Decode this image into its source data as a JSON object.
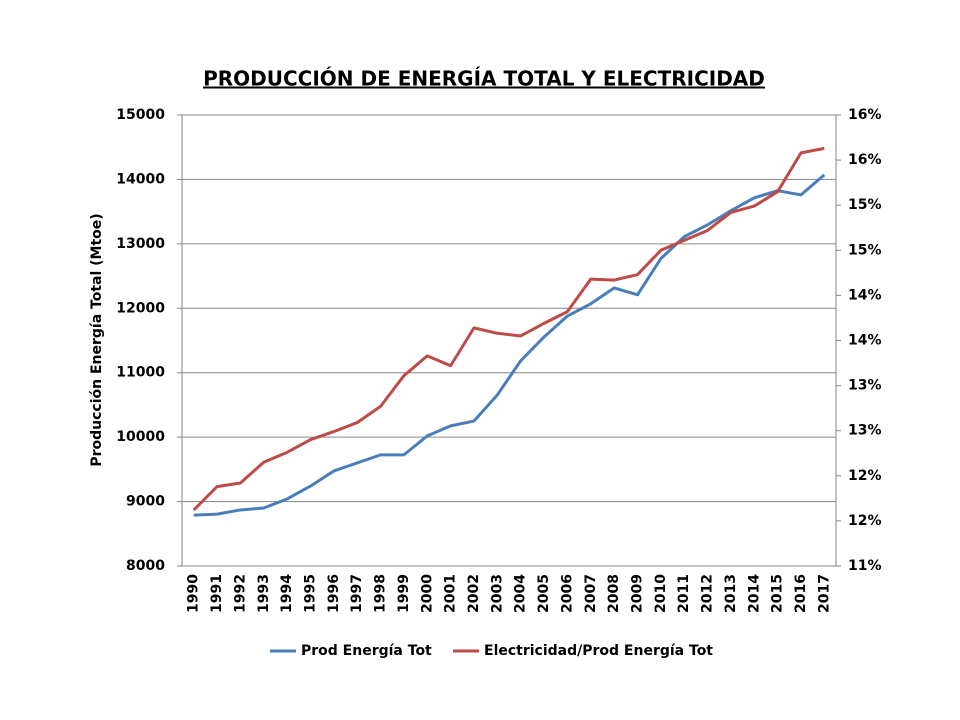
{
  "chart_data": {
    "type": "line",
    "title": "PRODUCCIÓN DE ENERGÍA TOTAL Y ELECTRICIDAD",
    "y_label": "Producción Energía Total (Mtoe)",
    "categories": [
      "1990",
      "1991",
      "1992",
      "1993",
      "1994",
      "1995",
      "1996",
      "1997",
      "1998",
      "1999",
      "2000",
      "2001",
      "2002",
      "2003",
      "2004",
      "2005",
      "2006",
      "2007",
      "2008",
      "2009",
      "2010",
      "2011",
      "2012",
      "2013",
      "2014",
      "2015",
      "2016",
      "2017"
    ],
    "series": [
      {
        "name": "Prod Energía Tot",
        "color": "#4a7ebb",
        "axis": "y",
        "values": [
          8790,
          8805,
          8870,
          8900,
          9040,
          9240,
          9475,
          9600,
          9725,
          9725,
          10020,
          10175,
          10250,
          10655,
          11185,
          11555,
          11880,
          12070,
          12315,
          12210,
          12770,
          13110,
          13295,
          13515,
          13715,
          13825,
          13760,
          14070
        ]
      },
      {
        "name": "Electricidad/Prod Energía Tot",
        "color": "#be4b48",
        "axis": "y2",
        "values": [
          11.62,
          11.88,
          11.92,
          12.15,
          12.26,
          12.4,
          12.49,
          12.59,
          12.77,
          13.11,
          13.33,
          13.22,
          13.64,
          13.58,
          13.55,
          13.69,
          13.82,
          14.18,
          14.17,
          14.23,
          14.5,
          14.61,
          14.72,
          14.92,
          14.99,
          15.15,
          15.58,
          15.63
        ]
      }
    ],
    "ylim": [
      8000,
      15000
    ],
    "yticks": [
      8000,
      9000,
      10000,
      11000,
      12000,
      13000,
      14000,
      15000
    ],
    "y2lim": [
      11,
      16
    ],
    "y2ticks": [
      {
        "value": 11,
        "label": "11%"
      },
      {
        "value": 11.5,
        "label": "12%"
      },
      {
        "value": 12,
        "label": "12%"
      },
      {
        "value": 12.5,
        "label": "13%"
      },
      {
        "value": 13,
        "label": "13%"
      },
      {
        "value": 13.5,
        "label": "14%"
      },
      {
        "value": 14,
        "label": "14%"
      },
      {
        "value": 14.5,
        "label": "15%"
      },
      {
        "value": 15,
        "label": "15%"
      },
      {
        "value": 15.5,
        "label": "16%"
      },
      {
        "value": 16,
        "label": "16%"
      }
    ],
    "grid": true,
    "legend": "bottom"
  }
}
